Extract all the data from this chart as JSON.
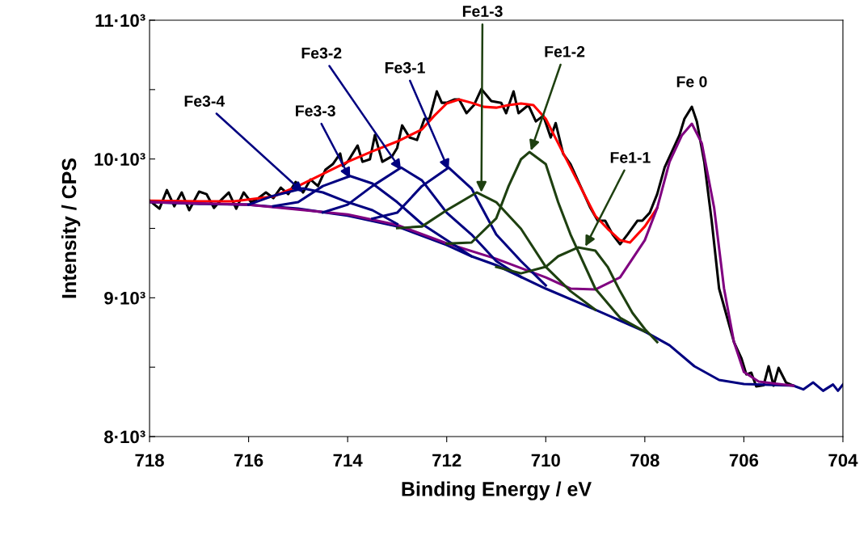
{
  "chart_data": {
    "type": "line",
    "xlabel": "Binding Energy / eV",
    "ylabel": "Intensity / CPS",
    "xlim": [
      718,
      704
    ],
    "xticks": [
      718,
      716,
      714,
      712,
      710,
      708,
      706,
      704
    ],
    "ylim": [
      8000,
      11000
    ],
    "yticks": [
      {
        "value": 8000,
        "label": "8·10³"
      },
      {
        "value": 8500,
        "label": null
      },
      {
        "value": 9000,
        "label": "9·10³"
      },
      {
        "value": 9500,
        "label": null
      },
      {
        "value": 10000,
        "label": "10·10³"
      },
      {
        "value": 10500,
        "label": null
      },
      {
        "value": 11000,
        "label": "11·10³"
      }
    ],
    "grid": false,
    "legend": false,
    "marker": "none",
    "line_style": "solid",
    "series": [
      {
        "color": "#000000",
        "x": [
          718,
          717.8,
          717.65,
          717.5,
          717.35,
          717.2,
          717.0,
          716.85,
          716.7,
          716.55,
          716.4,
          716.25,
          716.1,
          715.95,
          715.8,
          715.65,
          715.5,
          715.35,
          715.2,
          715.05,
          714.9,
          714.75,
          714.6,
          714.45,
          714.3,
          714.15,
          714.1,
          714.0,
          713.8,
          713.7,
          713.55,
          713.45,
          713.3,
          713.1,
          713.0,
          712.9,
          712.75,
          712.6,
          712.45,
          712.35,
          712.2,
          712.1,
          712.0,
          711.85,
          711.75,
          711.6,
          711.45,
          711.3,
          711.1,
          710.9,
          710.8,
          710.65,
          710.55,
          710.35,
          710.2,
          710.05,
          709.9,
          709.8,
          709.65,
          709.5,
          709.3,
          709.1,
          708.95,
          708.8,
          708.65,
          708.5,
          708.35,
          708.15,
          708.05,
          707.9,
          707.75,
          707.6,
          707.45,
          707.3,
          707.2,
          707.05,
          706.95,
          706.8,
          706.65,
          706.5,
          706.35,
          706.2,
          706.05,
          705.95,
          705.85,
          705.75,
          705.6,
          705.5,
          705.4,
          705.3,
          705.15,
          705.0
        ],
        "values": [
          9700,
          9642,
          9776,
          9660,
          9759,
          9631,
          9765,
          9747,
          9648,
          9706,
          9759,
          9642,
          9759,
          9689,
          9718,
          9759,
          9718,
          9794,
          9747,
          9835,
          9759,
          9852,
          9805,
          9922,
          9963,
          10039,
          9951,
          9980,
          10097,
          9980,
          9998,
          10172,
          9980,
          10021,
          10080,
          10242,
          10155,
          10137,
          10289,
          10289,
          10487,
          10405,
          10405,
          10429,
          10429,
          10330,
          10388,
          10504,
          10417,
          10405,
          10330,
          10487,
          10330,
          10388,
          10271,
          10312,
          10155,
          10259,
          10038,
          9963,
          9805,
          9648,
          9555,
          9555,
          9456,
          9386,
          9456,
          9555,
          9555,
          9613,
          9747,
          9939,
          10056,
          10172,
          10289,
          10376,
          10271,
          9980,
          9555,
          9066,
          8874,
          8681,
          8565,
          8448,
          8460,
          8361,
          8370,
          8507,
          8367,
          8495,
          8390,
          8367
        ]
      },
      {
        "color": "#ff0000",
        "x": [
          718,
          717,
          716.3,
          715.5,
          715,
          714.5,
          714,
          713.5,
          713,
          712.5,
          712.25,
          712,
          711.75,
          711.5,
          711.25,
          711,
          710.75,
          710.5,
          710.25,
          710,
          709.75,
          709.5,
          709.25,
          709,
          708.75,
          708.5,
          708.3,
          708,
          707.75
        ],
        "values": [
          9700,
          9695,
          9695,
          9730,
          9805,
          9893,
          9980,
          10056,
          10126,
          10213,
          10312,
          10400,
          10429,
          10405,
          10376,
          10370,
          10388,
          10400,
          10388,
          10289,
          10114,
          9939,
          9765,
          9590,
          9497,
          9415,
          9398,
          9514,
          9648
        ]
      },
      {
        "color": "#000080",
        "x": [
          718,
          717,
          716,
          715,
          714,
          713,
          712,
          711.5,
          711,
          710,
          709,
          708,
          707.5,
          707,
          706.5,
          706,
          705,
          704.8,
          704.6,
          704.4,
          704.2,
          704.1,
          704
        ],
        "values": [
          9689,
          9677,
          9671,
          9642,
          9592,
          9514,
          9380,
          9299,
          9235,
          9066,
          8914,
          8757,
          8658,
          8507,
          8408,
          8379,
          8367,
          8340,
          8390,
          8330,
          8375,
          8330,
          8375
        ]
      },
      {
        "color": "#800080",
        "x": [
          718,
          716,
          714,
          713,
          712,
          711,
          710,
          709.5,
          709,
          708.5,
          708,
          707.75,
          707.5,
          707.25,
          707.05,
          706.85,
          706.6,
          706.4,
          706.2,
          706,
          705.7,
          705.3,
          705
        ],
        "values": [
          9689,
          9671,
          9600,
          9525,
          9392,
          9281,
          9147,
          9066,
          9060,
          9147,
          9415,
          9648,
          9980,
          10172,
          10254,
          10114,
          9648,
          9066,
          8681,
          8466,
          8396,
          8379,
          8367
        ]
      },
      {
        "color": "#000080",
        "x": [
          716,
          715.5,
          714.9,
          714.5,
          714,
          713.5,
          713
        ],
        "values": [
          9671,
          9735,
          9788,
          9759,
          9689,
          9631,
          9532
        ]
      },
      {
        "color": "#000080",
        "x": [
          715.5,
          715,
          714.5,
          713.95,
          713.5,
          713,
          712.5,
          712,
          711.5
        ],
        "values": [
          9660,
          9689,
          9805,
          9877,
          9823,
          9689,
          9532,
          9415,
          9299
        ]
      },
      {
        "color": "#000080",
        "x": [
          714.5,
          714,
          713.5,
          712.92,
          712.5,
          712,
          711.5,
          711,
          710.5
        ],
        "values": [
          9615,
          9671,
          9805,
          9938,
          9846,
          9613,
          9456,
          9264,
          9150
        ]
      },
      {
        "color": "#000080",
        "x": [
          713.5,
          713,
          712.5,
          711.96,
          711.5,
          711,
          710.5,
          710
        ],
        "values": [
          9570,
          9613,
          9805,
          9938,
          9788,
          9456,
          9264,
          9089
        ]
      },
      {
        "color": "#1e4010",
        "x": [
          713,
          712.5,
          712,
          711.39,
          711,
          710.5,
          710,
          709.5,
          709
        ],
        "values": [
          9502,
          9514,
          9631,
          9759,
          9689,
          9497,
          9223,
          9048,
          8914
        ]
      },
      {
        "color": "#1e4010",
        "x": [
          712,
          711.5,
          711,
          710.75,
          710.5,
          710.33,
          710,
          709.75,
          709.5,
          709,
          708.5,
          708
        ],
        "values": [
          9390,
          9398,
          9572,
          9805,
          9998,
          10050,
          9963,
          9689,
          9456,
          9066,
          8856,
          8757
        ]
      },
      {
        "color": "#1e4010",
        "x": [
          711,
          710.5,
          710,
          709.75,
          709.35,
          709,
          708.75,
          708.5,
          708.25,
          708,
          707.75
        ],
        "values": [
          9223,
          9176,
          9223,
          9299,
          9363,
          9340,
          9223,
          9048,
          8891,
          8775,
          8681
        ]
      }
    ],
    "annotations": [
      {
        "text": "Fe3-4",
        "x": 714.9,
        "y": 9760
      },
      {
        "text": "Fe3-3",
        "x": 713.95,
        "y": 9860
      },
      {
        "text": "Fe3-2",
        "x": 712.92,
        "y": 9920
      },
      {
        "text": "Fe3-1",
        "x": 711.96,
        "y": 9920
      },
      {
        "text": "Fe1-3",
        "x": 711.3,
        "y": 9760
      },
      {
        "text": "Fe1-2",
        "x": 710.3,
        "y": 10060
      },
      {
        "text": "Fe1-1",
        "x": 709.2,
        "y": 9370
      },
      "Fe 0"
    ]
  }
}
